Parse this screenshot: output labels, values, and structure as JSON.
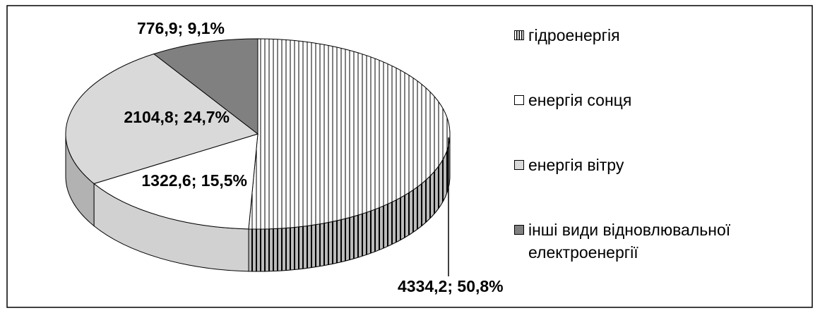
{
  "chart_data": {
    "type": "pie3d",
    "categories": [
      "гідроенергія",
      "енергія сонця",
      "енергія вітру",
      "інші види відновлювальної електроенергії"
    ],
    "values": [
      4334.2,
      1322.6,
      2104.8,
      776.9
    ],
    "value_labels": [
      "4334,2; 50,8%",
      "1322,6; 15,5%",
      "2104,8; 24,7%",
      "776,9; 9,1%"
    ],
    "colors": [
      "pattern-vertical-stripes",
      "#ffffff",
      "#d9d9d9",
      "#808080"
    ],
    "legend": "right"
  }
}
